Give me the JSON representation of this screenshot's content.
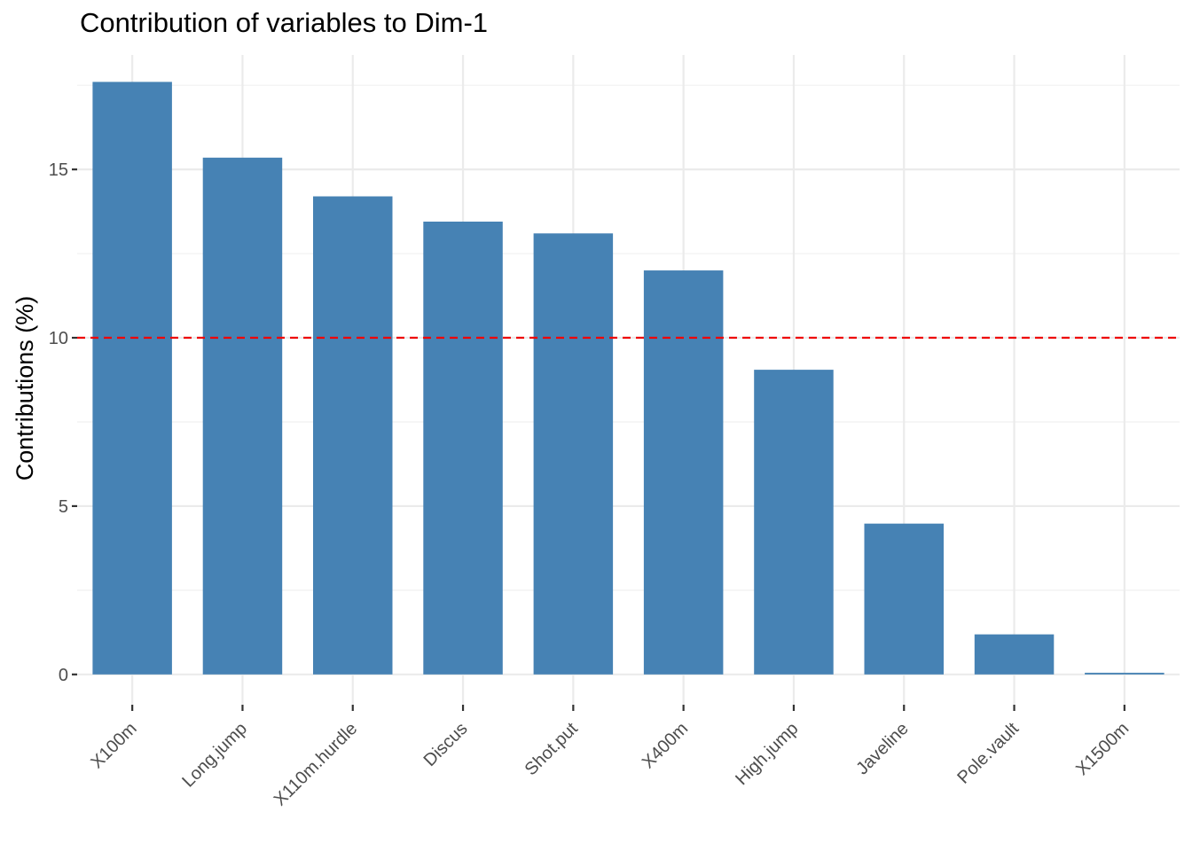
{
  "chart_data": {
    "type": "bar",
    "title": "Contribution of variables to Dim-1",
    "xlabel": "",
    "ylabel": "Contributions (%)",
    "categories": [
      "X100m",
      "Long.jump",
      "X110m.hurdle",
      "Discus",
      "Shot.put",
      "X400m",
      "High.jump",
      "Javeline",
      "Pole.vault",
      "X1500m"
    ],
    "values": [
      17.6,
      15.35,
      14.2,
      13.45,
      13.1,
      12.0,
      9.05,
      4.48,
      1.19,
      0.05
    ],
    "ylim": [
      -0.9,
      18.4
    ],
    "yticks": [
      0,
      5,
      10,
      15
    ],
    "ytick_labels": [
      "0",
      "5",
      "10",
      "15"
    ],
    "reference_line": {
      "value": 10,
      "color": "#ee0000",
      "style": "dashed"
    },
    "bar_color": "#4682b4",
    "grid": true,
    "legend": "none"
  }
}
